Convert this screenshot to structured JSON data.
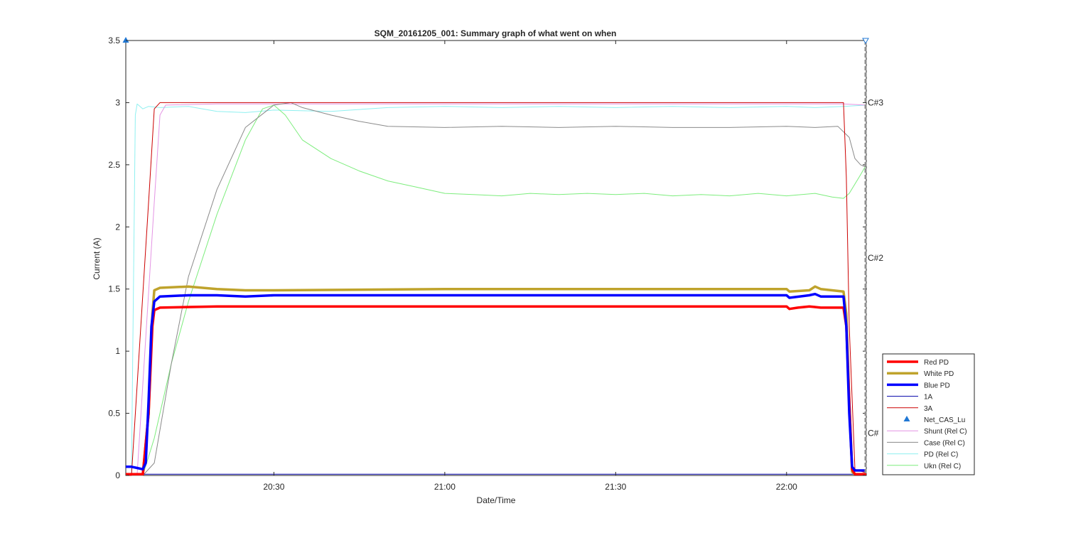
{
  "chart_data": {
    "type": "line",
    "title": "SQM_20161205_001: Summary graph of what went on when",
    "xlabel": "Date/Time",
    "ylabel": "Current (A)",
    "x_unit": "time of day",
    "xlim": [
      "20:04",
      "22:14"
    ],
    "ylim": [
      0,
      3.5
    ],
    "x_ticks": [
      "20:30",
      "21:00",
      "21:30",
      "22:00"
    ],
    "y_ticks": [
      "0",
      "0.5",
      "1",
      "1.5",
      "2",
      "2.5",
      "3",
      "3.5"
    ],
    "grid": false,
    "legend_position": "bottom-right",
    "annotations": [
      "C#3",
      "C#2",
      "C#"
    ],
    "series": [
      {
        "name": "Red PD",
        "color": "#ff0000",
        "width": 3.5,
        "points": [
          [
            "20:04",
            0.01
          ],
          [
            "20:07",
            0.01
          ],
          [
            "20:08",
            0.5
          ],
          [
            "20:08:40",
            1.2
          ],
          [
            "20:09",
            1.33
          ],
          [
            "20:10",
            1.35
          ],
          [
            "20:20",
            1.36
          ],
          [
            "20:30",
            1.36
          ],
          [
            "21:00",
            1.36
          ],
          [
            "21:30",
            1.36
          ],
          [
            "22:00",
            1.36
          ],
          [
            "22:00:30",
            1.34
          ],
          [
            "22:02",
            1.35
          ],
          [
            "22:04",
            1.36
          ],
          [
            "22:06",
            1.35
          ],
          [
            "22:10",
            1.35
          ],
          [
            "22:10:30",
            1.2
          ],
          [
            "22:11",
            0.6
          ],
          [
            "22:11:30",
            0.05
          ],
          [
            "22:12",
            0.01
          ],
          [
            "22:14",
            0.01
          ]
        ]
      },
      {
        "name": "White PD",
        "color": "#bfa32c",
        "width": 3.5,
        "points": [
          [
            "20:04",
            0.01
          ],
          [
            "20:07",
            0.01
          ],
          [
            "20:08",
            0.5
          ],
          [
            "20:08:40",
            1.3
          ],
          [
            "20:09",
            1.49
          ],
          [
            "20:10",
            1.51
          ],
          [
            "20:15",
            1.52
          ],
          [
            "20:20",
            1.5
          ],
          [
            "20:25",
            1.49
          ],
          [
            "20:30",
            1.49
          ],
          [
            "21:00",
            1.5
          ],
          [
            "21:30",
            1.5
          ],
          [
            "22:00",
            1.5
          ],
          [
            "22:00:30",
            1.48
          ],
          [
            "22:04",
            1.49
          ],
          [
            "22:05",
            1.52
          ],
          [
            "22:06",
            1.5
          ],
          [
            "22:10",
            1.48
          ],
          [
            "22:10:30",
            1.3
          ],
          [
            "22:11",
            0.6
          ],
          [
            "22:11:30",
            0.03
          ],
          [
            "22:12",
            0.01
          ],
          [
            "22:14",
            0.01
          ]
        ]
      },
      {
        "name": "Blue PD",
        "color": "#0000ff",
        "width": 3.5,
        "points": [
          [
            "20:04",
            0.07
          ],
          [
            "20:05",
            0.07
          ],
          [
            "20:06",
            0.06
          ],
          [
            "20:07",
            0.05
          ],
          [
            "20:07:30",
            0.1
          ],
          [
            "20:08",
            0.6
          ],
          [
            "20:08:30",
            1.2
          ],
          [
            "20:09",
            1.4
          ],
          [
            "20:10",
            1.44
          ],
          [
            "20:15",
            1.45
          ],
          [
            "20:20",
            1.45
          ],
          [
            "20:25",
            1.44
          ],
          [
            "20:30",
            1.45
          ],
          [
            "21:00",
            1.45
          ],
          [
            "21:30",
            1.45
          ],
          [
            "22:00",
            1.45
          ],
          [
            "22:00:30",
            1.43
          ],
          [
            "22:04",
            1.45
          ],
          [
            "22:05",
            1.46
          ],
          [
            "22:06",
            1.44
          ],
          [
            "22:10",
            1.44
          ],
          [
            "22:10:30",
            1.2
          ],
          [
            "22:11",
            0.5
          ],
          [
            "22:11:30",
            0.07
          ],
          [
            "22:12",
            0.04
          ],
          [
            "22:14",
            0.04
          ]
        ]
      },
      {
        "name": "1A",
        "color": "#0000aa",
        "width": 1,
        "points": [
          [
            "20:04",
            0.01
          ],
          [
            "22:14",
            0.01
          ]
        ]
      },
      {
        "name": "3A",
        "color": "#cc0000",
        "width": 1,
        "points": [
          [
            "20:04",
            0.0
          ],
          [
            "20:05",
            0.0
          ],
          [
            "20:08",
            2.2
          ],
          [
            "20:09",
            2.95
          ],
          [
            "20:10",
            3.0
          ],
          [
            "20:20",
            3.0
          ],
          [
            "20:30",
            3.0
          ],
          [
            "21:00",
            3.0
          ],
          [
            "21:30",
            3.0
          ],
          [
            "22:00",
            3.0
          ],
          [
            "22:10",
            3.0
          ],
          [
            "22:10:30",
            2.4
          ],
          [
            "22:11",
            1.2
          ],
          [
            "22:12",
            0.05
          ],
          [
            "22:14",
            0.02
          ]
        ]
      },
      {
        "name": "Net_CAS_Lu",
        "color": "#1f77d4",
        "width": 0,
        "marker": "triangle",
        "points": [
          [
            "20:04",
            3.5
          ]
        ]
      },
      {
        "name": "Shunt (Rel C)",
        "color": "#e494e4",
        "width": 1,
        "points": [
          [
            "20:04",
            0.0
          ],
          [
            "20:06",
            0.01
          ],
          [
            "20:09",
            2.2
          ],
          [
            "20:10",
            2.9
          ],
          [
            "20:11",
            2.98
          ],
          [
            "20:20",
            2.99
          ],
          [
            "20:30",
            2.99
          ],
          [
            "21:00",
            2.99
          ],
          [
            "21:30",
            2.99
          ],
          [
            "22:00",
            2.99
          ],
          [
            "22:10",
            2.99
          ],
          [
            "22:14",
            2.98
          ]
        ]
      },
      {
        "name": "Case (Rel C)",
        "color": "#8a8a8a",
        "width": 1,
        "points": [
          [
            "20:04",
            0.0
          ],
          [
            "20:07",
            0.0
          ],
          [
            "20:09",
            0.1
          ],
          [
            "20:12",
            0.9
          ],
          [
            "20:15",
            1.6
          ],
          [
            "20:20",
            2.3
          ],
          [
            "20:25",
            2.8
          ],
          [
            "20:30",
            2.98
          ],
          [
            "20:33",
            3.0
          ],
          [
            "20:35",
            2.96
          ],
          [
            "20:40",
            2.9
          ],
          [
            "20:45",
            2.85
          ],
          [
            "20:50",
            2.81
          ],
          [
            "21:00",
            2.8
          ],
          [
            "21:10",
            2.81
          ],
          [
            "21:20",
            2.8
          ],
          [
            "21:30",
            2.81
          ],
          [
            "21:40",
            2.8
          ],
          [
            "21:50",
            2.8
          ],
          [
            "22:00",
            2.81
          ],
          [
            "22:05",
            2.8
          ],
          [
            "22:09",
            2.81
          ],
          [
            "22:11",
            2.72
          ],
          [
            "22:12",
            2.55
          ],
          [
            "22:13",
            2.5
          ],
          [
            "22:14",
            2.48
          ]
        ]
      },
      {
        "name": "PD (Rel C)",
        "color": "#8ff0f0",
        "width": 1,
        "points": [
          [
            "20:04",
            0.0
          ],
          [
            "20:05",
            0.02
          ],
          [
            "20:05:40",
            2.9
          ],
          [
            "20:06",
            2.99
          ],
          [
            "20:07",
            2.95
          ],
          [
            "20:08",
            2.97
          ],
          [
            "20:10",
            2.96
          ],
          [
            "20:15",
            2.97
          ],
          [
            "20:20",
            2.93
          ],
          [
            "20:25",
            2.92
          ],
          [
            "20:30",
            2.94
          ],
          [
            "20:40",
            2.93
          ],
          [
            "20:50",
            2.96
          ],
          [
            "21:00",
            2.97
          ],
          [
            "21:10",
            2.96
          ],
          [
            "21:20",
            2.97
          ],
          [
            "21:30",
            2.96
          ],
          [
            "21:40",
            2.97
          ],
          [
            "21:50",
            2.96
          ],
          [
            "22:00",
            2.97
          ],
          [
            "22:05",
            2.96
          ],
          [
            "22:10",
            2.97
          ],
          [
            "22:14",
            2.98
          ]
        ]
      },
      {
        "name": "Ukn (Rel C)",
        "color": "#7ded7d",
        "width": 1,
        "points": [
          [
            "20:04",
            0.0
          ],
          [
            "20:07",
            0.0
          ],
          [
            "20:09",
            0.3
          ],
          [
            "20:12",
            0.9
          ],
          [
            "20:15",
            1.4
          ],
          [
            "20:20",
            2.1
          ],
          [
            "20:25",
            2.7
          ],
          [
            "20:28",
            2.95
          ],
          [
            "20:30",
            2.98
          ],
          [
            "20:32",
            2.9
          ],
          [
            "20:35",
            2.7
          ],
          [
            "20:40",
            2.55
          ],
          [
            "20:45",
            2.45
          ],
          [
            "20:50",
            2.37
          ],
          [
            "20:55",
            2.32
          ],
          [
            "21:00",
            2.27
          ],
          [
            "21:05",
            2.26
          ],
          [
            "21:10",
            2.25
          ],
          [
            "21:15",
            2.27
          ],
          [
            "21:20",
            2.26
          ],
          [
            "21:25",
            2.27
          ],
          [
            "21:30",
            2.26
          ],
          [
            "21:35",
            2.27
          ],
          [
            "21:40",
            2.25
          ],
          [
            "21:45",
            2.26
          ],
          [
            "21:50",
            2.25
          ],
          [
            "21:55",
            2.27
          ],
          [
            "22:00",
            2.25
          ],
          [
            "22:05",
            2.27
          ],
          [
            "22:08",
            2.24
          ],
          [
            "22:10",
            2.23
          ],
          [
            "22:11",
            2.27
          ],
          [
            "22:13",
            2.42
          ],
          [
            "22:14",
            2.5
          ]
        ]
      }
    ]
  }
}
